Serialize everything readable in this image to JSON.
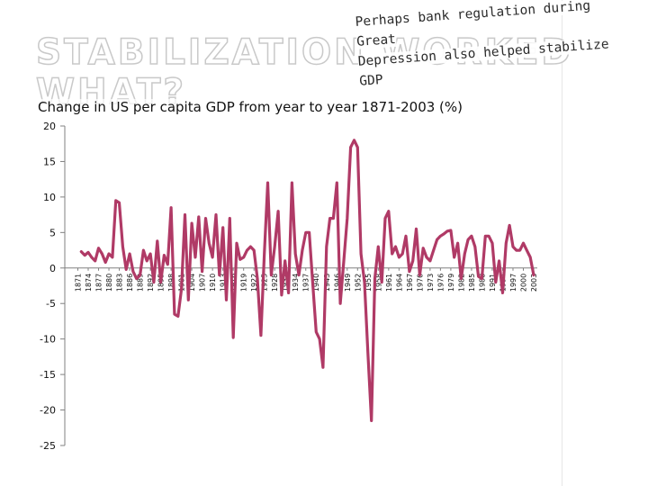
{
  "slide": {
    "background_title_line1": "STABILIZATION WORKED",
    "background_title_line2": "WHAT?",
    "callout_line1": "Perhaps bank regulation during Great",
    "callout_line2": "Depression also helped stabilize GDP"
  },
  "colors": {
    "series": "#b03a66",
    "axis": "#808080",
    "text": "#111111"
  },
  "chart_data": {
    "type": "line",
    "title": "Change in US per capita GDP from year to year 1871-2003 (%)",
    "xlabel": "",
    "ylabel": "",
    "ylim": [
      -25,
      20
    ],
    "yticks": [
      20,
      15,
      10,
      5,
      0,
      -5,
      -10,
      -15,
      -20,
      -25
    ],
    "grid": false,
    "xtick_labels": [
      "1871",
      "1874",
      "1877",
      "1880",
      "1883",
      "1886",
      "1889",
      "1892",
      "1895",
      "1898",
      "1901",
      "1904",
      "1907",
      "1910",
      "1913",
      "1916",
      "1919",
      "1922",
      "1925",
      "1928",
      "1931",
      "1934",
      "1937",
      "1940",
      "1943",
      "1946",
      "1949",
      "1952",
      "1955",
      "1958",
      "1961",
      "1964",
      "1967",
      "1970",
      "1973",
      "1976",
      "1979",
      "1982",
      "1985",
      "1988",
      "1991",
      "1994",
      "1997",
      "2000",
      "2003"
    ],
    "series": [
      {
        "name": "Change in US per capita GDP (%)",
        "x_start": 1872,
        "values": [
          2.3,
          1.8,
          2.2,
          1.5,
          1.0,
          2.8,
          2.0,
          0.8,
          2.0,
          1.5,
          9.5,
          9.2,
          3.0,
          -0.2,
          2.0,
          -0.5,
          -1.5,
          -1.0,
          2.5,
          1.0,
          2.0,
          -2.0,
          3.8,
          -2.0,
          1.8,
          0.5,
          8.5,
          -6.5,
          -6.8,
          -3.0,
          7.5,
          -4.5,
          6.3,
          1.5,
          7.2,
          -0.5,
          7.0,
          3.5,
          1.5,
          7.5,
          -1.0,
          5.7,
          -4.5,
          7.0,
          -9.8,
          3.5,
          1.2,
          1.5,
          2.5,
          3.0,
          2.5,
          -1.5,
          -9.5,
          2.0,
          12.0,
          -1.0,
          3.0,
          8.0,
          -3.8,
          1.0,
          -3.5,
          12.0,
          2.0,
          -1.0,
          2.5,
          5.0,
          5.0,
          -2.0,
          -9.0,
          -10.0,
          -14.0,
          3.0,
          7.0,
          7.0,
          12.0,
          -5.0,
          1.0,
          7.0,
          17.0,
          18.0,
          17.0,
          2.0,
          -2.0,
          -12.0,
          -21.5,
          -1.5,
          3.0,
          -2.0,
          7.0,
          8.0,
          2.0,
          3.0,
          1.5,
          2.0,
          4.5,
          -0.5,
          1.0,
          5.5,
          -1.0,
          2.8,
          1.5,
          1.0,
          2.5,
          4.0,
          4.5,
          4.8,
          5.2,
          5.3,
          1.5,
          3.5,
          -1.5,
          2.0,
          4.0,
          4.5,
          3.0,
          -1.2,
          -1.5,
          4.5,
          4.5,
          3.5,
          -2.0,
          1.0,
          -3.5,
          3.5,
          6.0,
          3.0,
          2.5,
          2.5,
          3.5,
          2.5,
          1.5,
          -1.0
        ]
      }
    ]
  }
}
